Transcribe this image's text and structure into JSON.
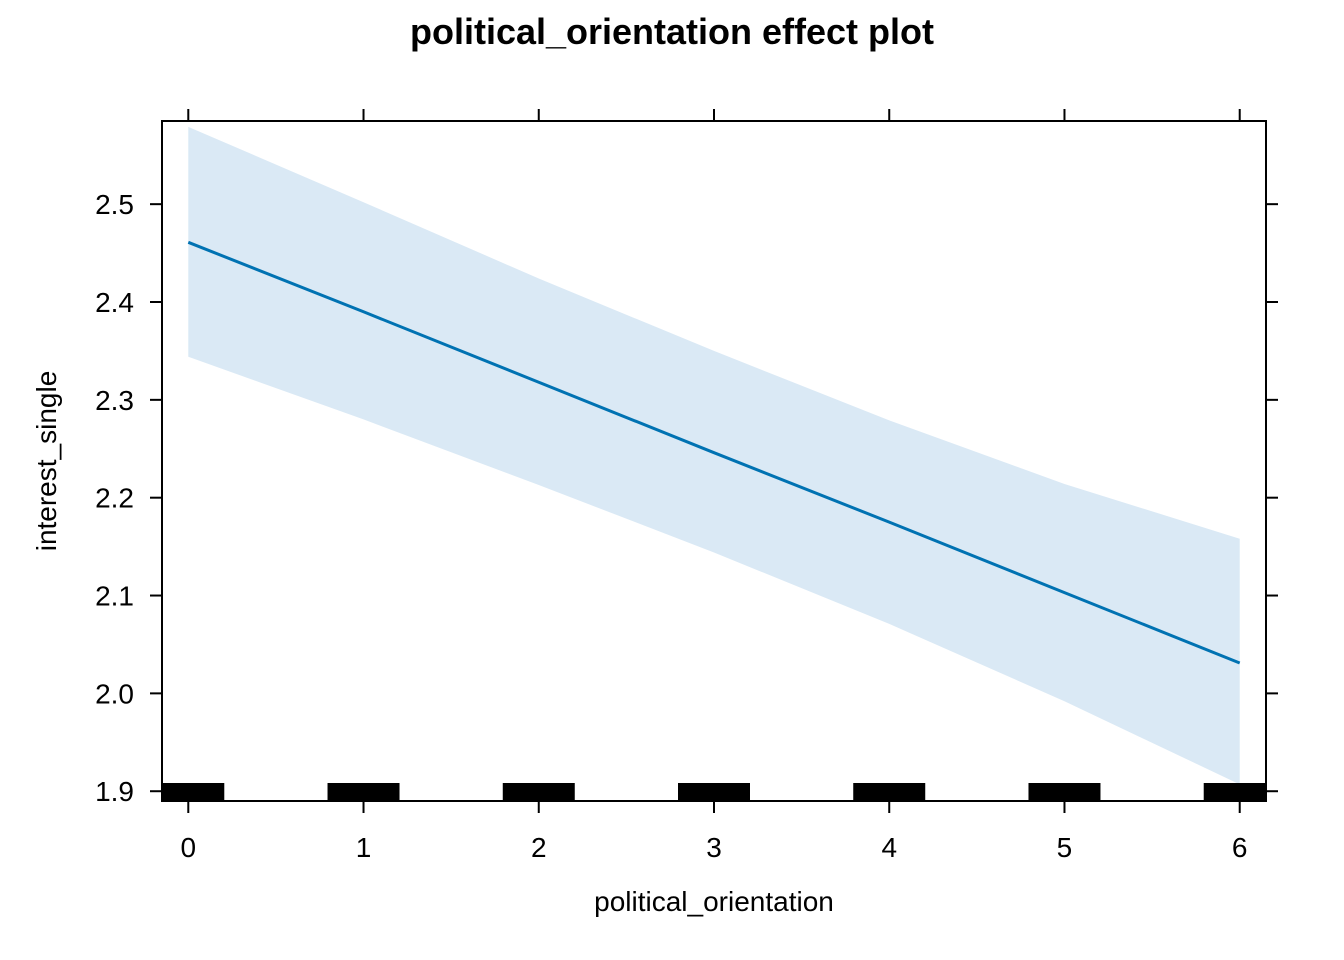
{
  "chart_data": {
    "type": "line",
    "title": "political_orientation effect plot",
    "xlabel": "political_orientation",
    "ylabel": "interest_single",
    "xlim": [
      -0.15,
      6.15
    ],
    "ylim": [
      1.89,
      2.585
    ],
    "x_ticks": [
      0,
      1,
      2,
      3,
      4,
      5,
      6
    ],
    "y_ticks": [
      1.9,
      2.0,
      2.1,
      2.2,
      2.3,
      2.4,
      2.5
    ],
    "x_tick_labels": [
      "0",
      "1",
      "2",
      "3",
      "4",
      "5",
      "6"
    ],
    "y_tick_labels": [
      "1.9",
      "2.0",
      "2.1",
      "2.2",
      "2.3",
      "2.4",
      "2.5"
    ],
    "grid": false,
    "series": [
      {
        "x": [
          0,
          1,
          2,
          3,
          4,
          5,
          6
        ],
        "y": [
          2.461,
          2.39,
          2.318,
          2.246,
          2.175,
          2.103,
          2.031
        ],
        "lower": [
          2.344,
          2.28,
          2.213,
          2.144,
          2.071,
          1.992,
          1.907
        ],
        "upper": [
          2.579,
          2.502,
          2.424,
          2.35,
          2.279,
          2.214,
          2.158
        ],
        "color": "#0072b2",
        "band_color": "#dae9f5"
      }
    ],
    "rug": {
      "x": [
        0,
        1,
        2,
        3,
        4,
        5,
        6
      ],
      "color": "#000000"
    }
  }
}
